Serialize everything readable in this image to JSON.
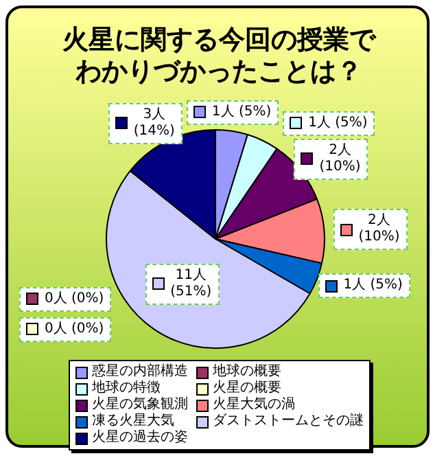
{
  "chart_data": {
    "type": "pie",
    "title": "火星に関する今回の授業でわかりづかったことは？",
    "categories": [
      "惑星の内部構造",
      "地球の概要",
      "地球の特徴",
      "火星の概要",
      "火星の気象観測",
      "火星大気の渦",
      "凍る火星大気",
      "ダストストームとその謎",
      "火星の過去の姿"
    ],
    "values": [
      1,
      0,
      1,
      0,
      2,
      2,
      1,
      11,
      3
    ],
    "colors": [
      "#9999ff",
      "#993366",
      "#ccffff",
      "#ffffcc",
      "#660066",
      "#ff8080",
      "#0066cc",
      "#ccccff",
      "#000080"
    ],
    "value_labels": [
      "1人 (5%)",
      "0人 (0%)",
      "1人 (5%)",
      "0人 (0%)",
      "2人\n(10%)",
      "2人\n(10%)",
      "1人 (5%)",
      "11人\n(51%)",
      "3人\n(14%)"
    ],
    "legend": "bottom"
  }
}
